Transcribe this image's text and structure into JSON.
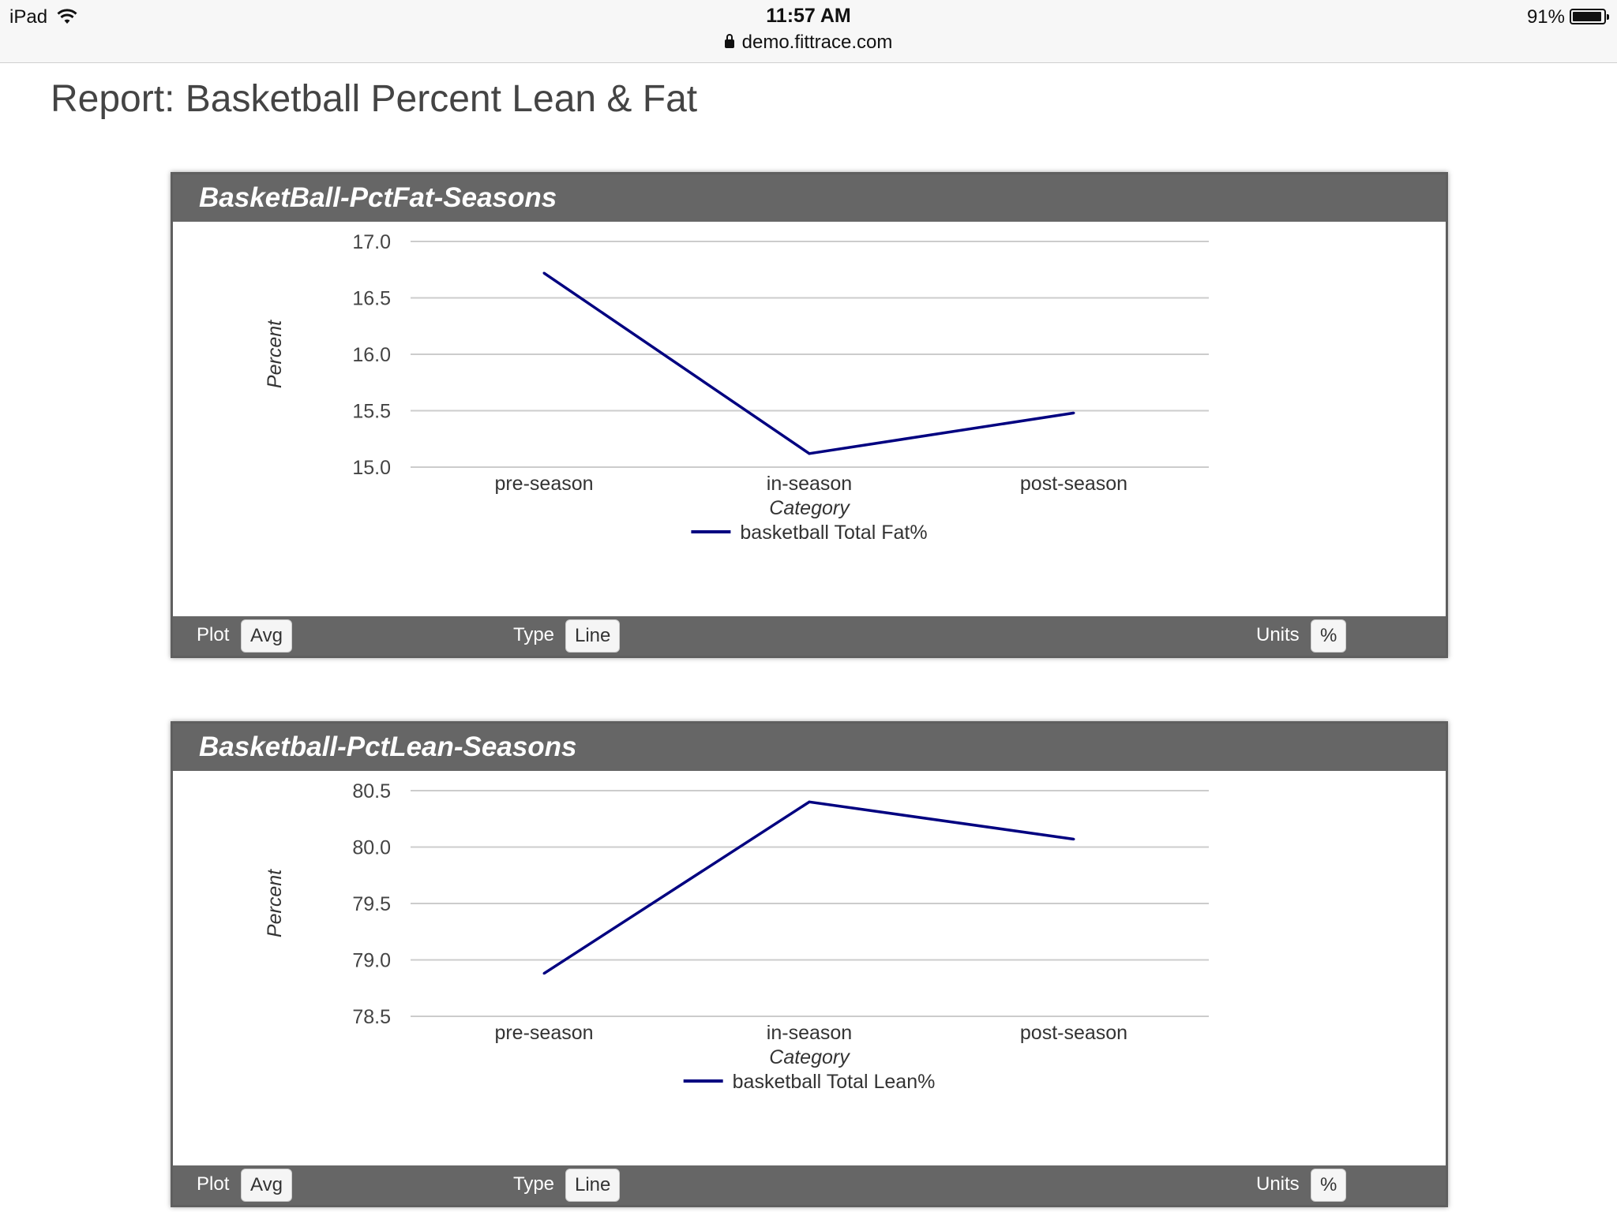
{
  "status_bar": {
    "device": "iPad",
    "time": "11:57 AM",
    "url": "demo.fittrace.com",
    "battery": "91%"
  },
  "page": {
    "title": "Report: Basketball Percent Lean & Fat"
  },
  "colors": {
    "series_line": "#000080",
    "panel_bar": "#666666"
  },
  "panels": [
    {
      "title": "BasketBall-PctFat-Seasons",
      "footer": {
        "plot_label": "Plot",
        "plot_value": "Avg",
        "type_label": "Type",
        "type_value": "Line",
        "units_label": "Units",
        "units_value": "%"
      }
    },
    {
      "title": "Basketball-PctLean-Seasons",
      "footer": {
        "plot_label": "Plot",
        "plot_value": "Avg",
        "type_label": "Type",
        "type_value": "Line",
        "units_label": "Units",
        "units_value": "%"
      }
    }
  ],
  "chart_data": [
    {
      "type": "line",
      "categories": [
        "pre-season",
        "in-season",
        "post-season"
      ],
      "series": [
        {
          "name": "basketball Total Fat%",
          "values": [
            16.72,
            15.12,
            15.48
          ]
        }
      ],
      "xlabel": "Category",
      "ylabel": "Percent",
      "ylim": [
        15.0,
        17.0
      ],
      "yticks": [
        "15.0",
        "15.5",
        "16.0",
        "16.5",
        "17.0"
      ],
      "grid": true,
      "legend": "bottom-center"
    },
    {
      "type": "line",
      "categories": [
        "pre-season",
        "in-season",
        "post-season"
      ],
      "series": [
        {
          "name": "basketball Total Lean%",
          "values": [
            78.88,
            80.4,
            80.07
          ]
        }
      ],
      "xlabel": "Category",
      "ylabel": "Percent",
      "ylim": [
        78.5,
        80.5
      ],
      "yticks": [
        "78.5",
        "79.0",
        "79.5",
        "80.0",
        "80.5"
      ],
      "grid": true,
      "legend": "bottom-center"
    }
  ]
}
